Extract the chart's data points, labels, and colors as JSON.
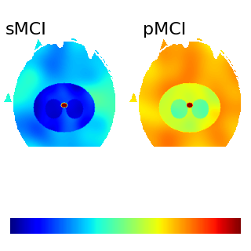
{
  "title_left": "sMCI",
  "title_right": "pMCI",
  "title_fontsize": 16,
  "title_fontweight": "normal",
  "background_color": "#ffffff",
  "colormap": "jet",
  "smci_vmin": 0.0,
  "smci_vmax": 0.5,
  "pmci_vmin": 0.5,
  "pmci_vmax": 1.0
}
